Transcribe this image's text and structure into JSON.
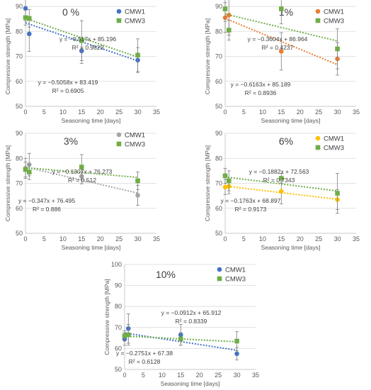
{
  "chart_data": [
    {
      "type": "scatter",
      "title": "0 %",
      "xlabel": "Seasoning time [days]",
      "ylabel": "Compressive strength [MPa]",
      "xlim": [
        0,
        35
      ],
      "xticks": [
        0,
        5,
        10,
        15,
        20,
        25,
        30,
        35
      ],
      "ylim": [
        50,
        90
      ],
      "yticks": [
        50,
        60,
        70,
        80,
        90
      ],
      "grid": true,
      "legend_position": "top-right",
      "series": [
        {
          "name": "CMW1",
          "color": "#4472C4",
          "marker": "circle",
          "trendline": "dotted",
          "x": [
            0,
            1,
            15,
            30
          ],
          "y": [
            89.2,
            79.0,
            72.2,
            68.5
          ],
          "err": [
            5.0,
            7.0,
            5.0,
            5.0
          ],
          "fit": {
            "slope": -0.5058,
            "intercept": 83.419
          }
        },
        {
          "name": "CMW3",
          "color": "#70AD47",
          "marker": "square",
          "trendline": "dotted",
          "x": [
            0,
            1,
            15,
            30
          ],
          "y": [
            85.5,
            85.2,
            76.3,
            70.5
          ],
          "err": [
            3.0,
            3.5,
            8.0,
            6.5
          ],
          "fit": {
            "slope": -0.517,
            "intercept": 85.196
          }
        }
      ],
      "equations": [
        {
          "text": "y = −0.517x + 85.196",
          "r2": "R² = 0.9829"
        },
        {
          "text": "y = −0.5058x + 83.419",
          "r2": "R² = 0.6905"
        }
      ]
    },
    {
      "type": "scatter",
      "title": "1%",
      "xlabel": "Seasoning time [days]",
      "ylabel": "Compressive strength [MPa]",
      "xlim": [
        0,
        35
      ],
      "xticks": [
        0,
        5,
        10,
        15,
        20,
        25,
        30,
        35
      ],
      "ylim": [
        50,
        90
      ],
      "yticks": [
        50,
        60,
        70,
        80,
        90
      ],
      "grid": true,
      "legend_position": "top-right",
      "series": [
        {
          "name": "CMW1",
          "color": "#ED7D31",
          "marker": "circle",
          "trendline": "dotted",
          "x": [
            0,
            1,
            15,
            30
          ],
          "y": [
            85.5,
            86.5,
            72.0,
            69.0
          ],
          "err": [
            6.0,
            8.0,
            7.5,
            6.5
          ],
          "fit": {
            "slope": -0.6163,
            "intercept": 85.189
          }
        },
        {
          "name": "CMW3",
          "color": "#70AD47",
          "marker": "square",
          "trendline": "dotted",
          "x": [
            0,
            1,
            15,
            30
          ],
          "y": [
            89.0,
            80.5,
            89.0,
            73.0
          ],
          "err": [
            5.0,
            4.0,
            6.0,
            8.0
          ],
          "fit": {
            "slope": -0.3604,
            "intercept": 86.964
          }
        }
      ],
      "equations": [
        {
          "text": "y = −0.3604x + 86.964",
          "r2": "R² = 0.4237"
        },
        {
          "text": "y = −0.6163x + 85.189",
          "r2": "R² = 0.8936"
        }
      ]
    },
    {
      "type": "scatter",
      "title": "3%",
      "xlabel": "Seasoning time [days]",
      "ylabel": "Compressive strength [MPa]",
      "xlim": [
        0,
        35
      ],
      "xticks": [
        0,
        5,
        10,
        15,
        20,
        25,
        30,
        35
      ],
      "ylim": [
        50,
        90
      ],
      "yticks": [
        50,
        60,
        70,
        80,
        90
      ],
      "grid": true,
      "legend_position": "top-right",
      "series": [
        {
          "name": "CMW1",
          "color": "#A5A5A5",
          "marker": "circle",
          "trendline": "dotted",
          "x": [
            0,
            1,
            15,
            30
          ],
          "y": [
            76.0,
            77.5,
            72.8,
            65.2
          ],
          "err": [
            4.0,
            4.5,
            3.0,
            4.0
          ],
          "fit": {
            "slope": -0.347,
            "intercept": 76.495
          }
        },
        {
          "name": "CMW3",
          "color": "#70AD47",
          "marker": "square",
          "trendline": "dotted",
          "x": [
            0,
            1,
            15,
            30
          ],
          "y": [
            75.5,
            74.5,
            76.5,
            71.0
          ],
          "err": [
            3.0,
            3.0,
            5.0,
            3.5
          ],
          "fit": {
            "slope": -0.1307,
            "intercept": 76.273
          }
        }
      ],
      "equations": [
        {
          "text": "y = −0.1307x + 76.273",
          "r2": "R² = 0.512"
        },
        {
          "text": "y = −0.347x + 76.495",
          "r2": "R² = 0.886"
        }
      ]
    },
    {
      "type": "scatter",
      "title": "6%",
      "xlabel": "Seasoning time [days]",
      "ylabel": "Compressive strength [MPa]",
      "xlim": [
        0,
        35
      ],
      "xticks": [
        0,
        5,
        10,
        15,
        20,
        25,
        30,
        35
      ],
      "ylim": [
        50,
        90
      ],
      "yticks": [
        50,
        60,
        70,
        80,
        90
      ],
      "grid": true,
      "legend_position": "top-right",
      "series": [
        {
          "name": "CMW1",
          "color": "#FFC000",
          "marker": "circle",
          "trendline": "dotted",
          "x": [
            0,
            1,
            15,
            30
          ],
          "y": [
            68.5,
            68.8,
            66.8,
            63.5
          ],
          "err": [
            3.0,
            3.0,
            5.0,
            4.0
          ],
          "fit": {
            "slope": -0.1763,
            "intercept": 68.897
          }
        },
        {
          "name": "CMW3",
          "color": "#70AD47",
          "marker": "square",
          "trendline": "dotted",
          "x": [
            0,
            1,
            15,
            30
          ],
          "y": [
            73.0,
            71.0,
            72.0,
            66.0
          ],
          "err": [
            3.0,
            4.0,
            2.0,
            8.0
          ],
          "fit": {
            "slope": -0.1882,
            "intercept": 72.563
          }
        }
      ],
      "equations": [
        {
          "text": "y = −0.1882x + 72.563",
          "r2": "R² = 0.7343"
        },
        {
          "text": "y = −0.1763x + 68.897",
          "r2": "R² = 0.9173"
        }
      ]
    },
    {
      "type": "scatter",
      "title": "10%",
      "xlabel": "Seasoning time [days]",
      "ylabel": "Compressive strength [MPa]",
      "xlim": [
        0,
        35
      ],
      "xticks": [
        0,
        5,
        10,
        15,
        20,
        25,
        30,
        35
      ],
      "ylim": [
        50,
        100
      ],
      "yticks": [
        50,
        60,
        70,
        80,
        90,
        100
      ],
      "grid": true,
      "legend_position": "top-right",
      "series": [
        {
          "name": "CMW1",
          "color": "#4472C4",
          "marker": "circle",
          "trendline": "dotted",
          "x": [
            0,
            1,
            15,
            30
          ],
          "y": [
            64.5,
            69.5,
            66.5,
            57.5
          ],
          "err": [
            3.0,
            7.0,
            5.0,
            3.0
          ],
          "fit": {
            "slope": -0.2751,
            "intercept": 67.38
          }
        },
        {
          "name": "CMW3",
          "color": "#70AD47",
          "marker": "square",
          "trendline": "dotted",
          "x": [
            0,
            1,
            15,
            30
          ],
          "y": [
            66.0,
            66.5,
            64.5,
            63.5
          ],
          "err": [
            2.5,
            5.0,
            3.0,
            4.5
          ],
          "fit": {
            "slope": -0.0912,
            "intercept": 65.912
          }
        }
      ],
      "equations": [
        {
          "text": "y = −0.0912x + 65.912",
          "r2": "R² = 0.8339"
        },
        {
          "text": "y = −0.2751x + 67.38",
          "r2": "R² = 0.6128"
        }
      ]
    }
  ]
}
